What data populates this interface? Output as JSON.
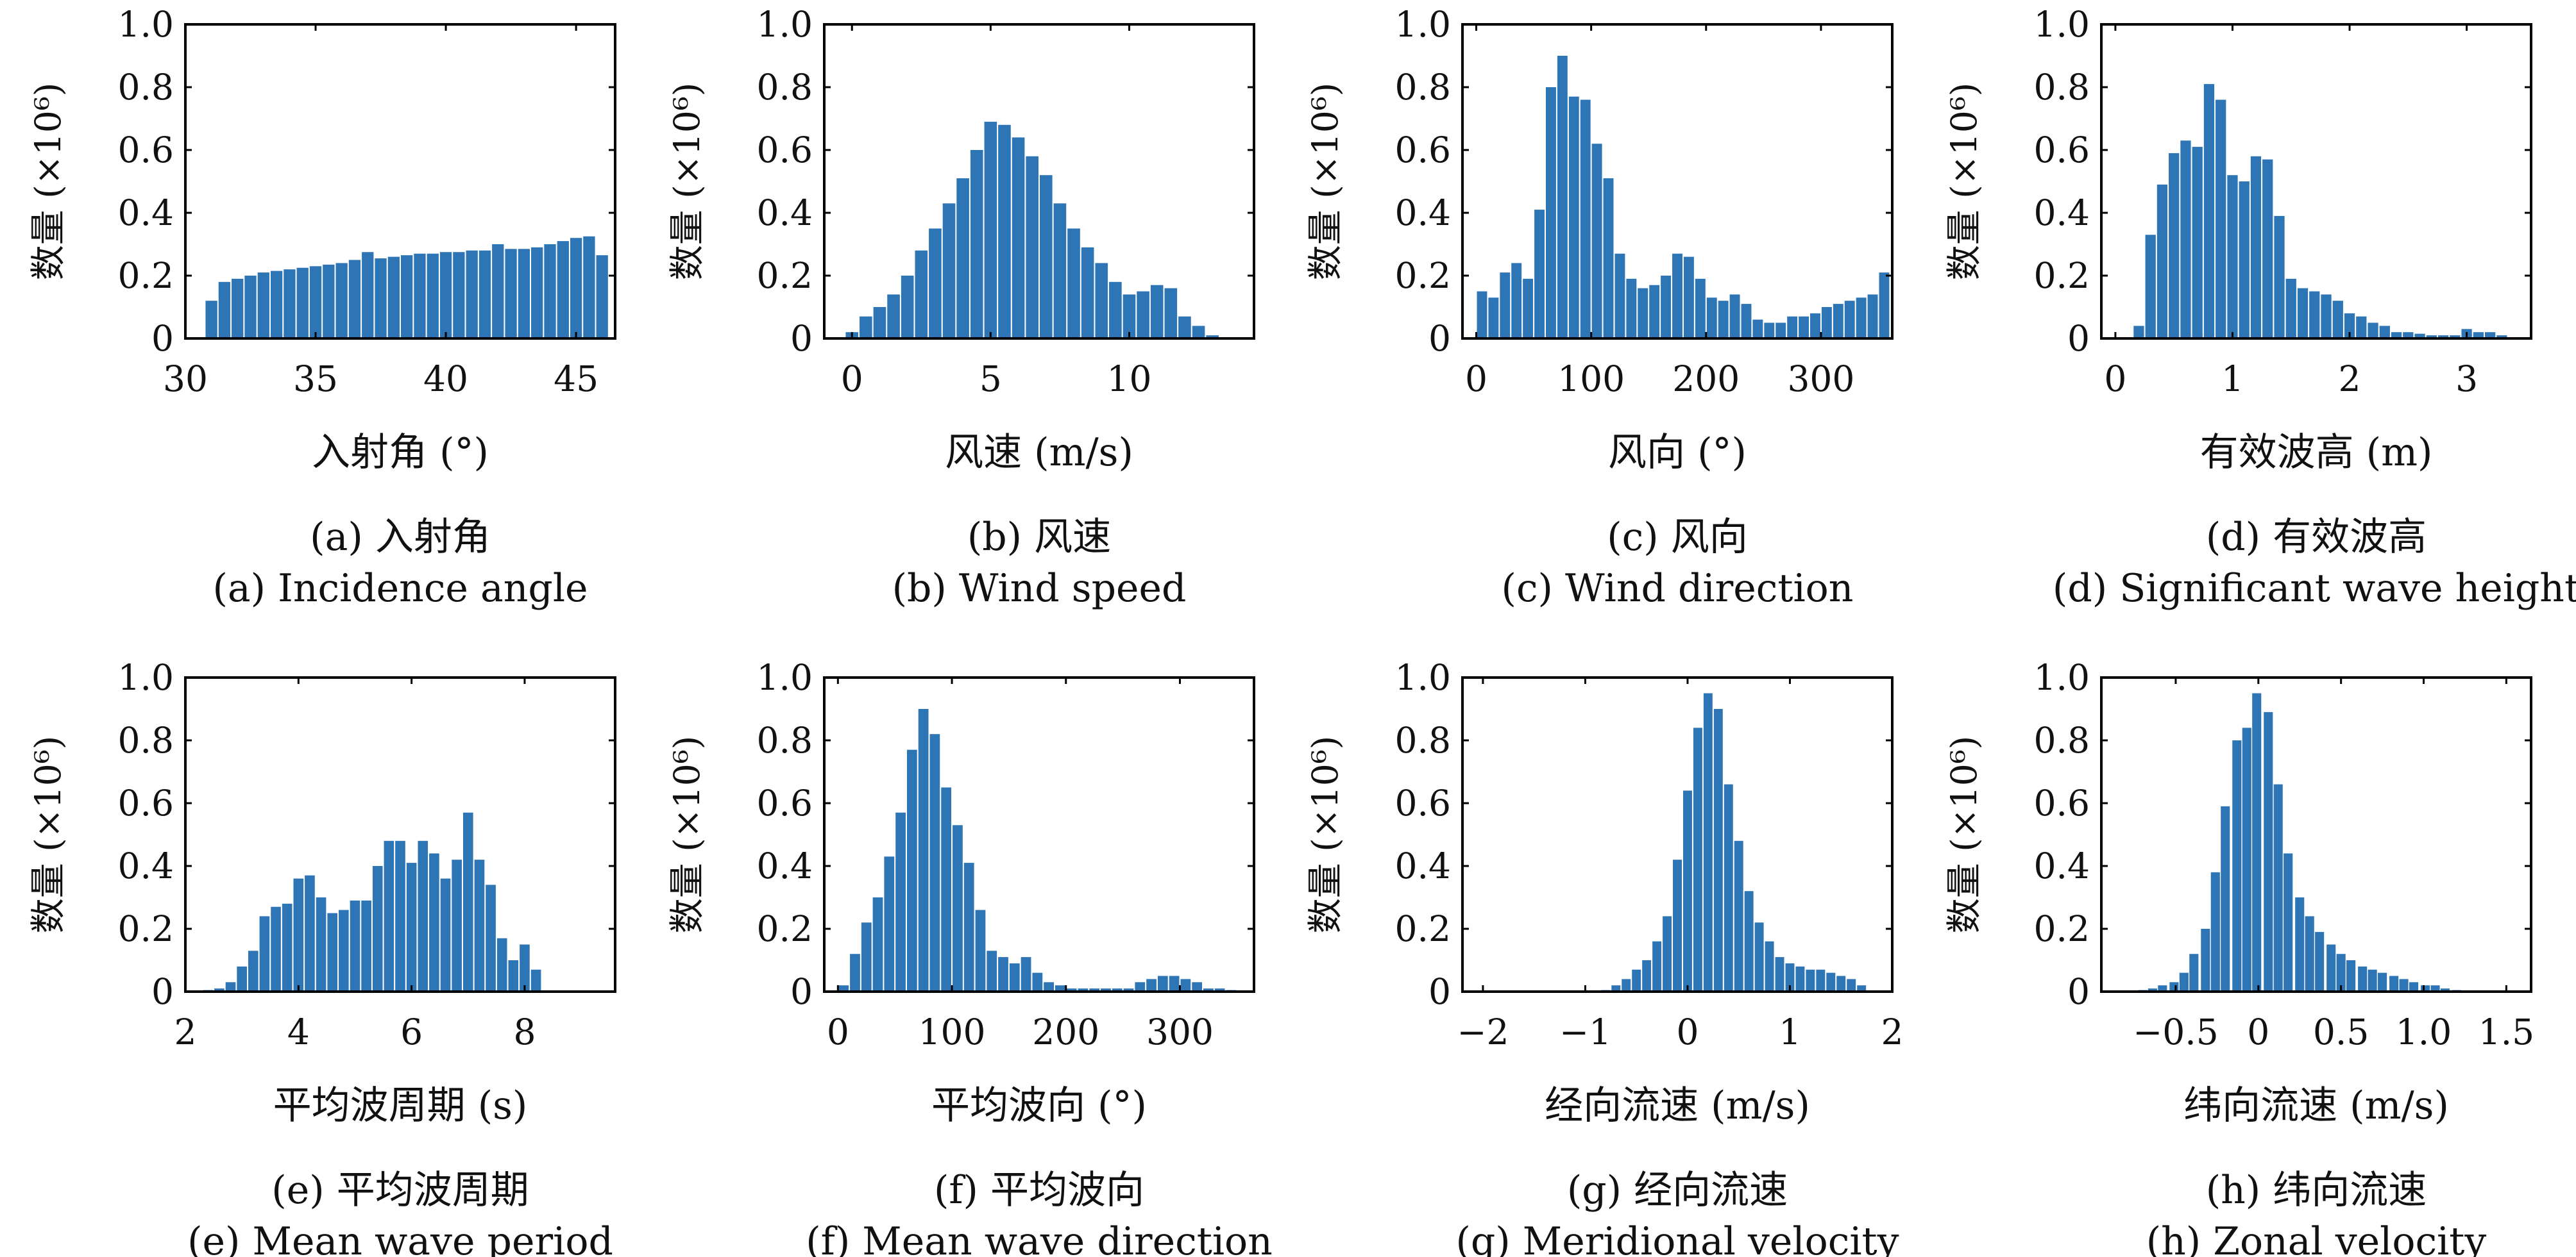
{
  "chart_data": [
    {
      "type": "bar",
      "xlabel": "入射角 (°)",
      "ylabel": "数量 (×10⁶)",
      "caption_cn": "(a) 入射角",
      "caption_en": "(a) Incidence angle",
      "ylim": [
        0,
        1.0
      ],
      "xlim": [
        30,
        46.5
      ],
      "xticks": [
        30,
        35,
        40,
        45
      ],
      "xtick_labels": [
        "30",
        "35",
        "40",
        "45"
      ],
      "yticks": [
        0,
        0.2,
        0.4,
        0.6,
        0.8,
        1.0
      ],
      "ytick_labels": [
        "0",
        "0.2",
        "0.4",
        "0.6",
        "0.8",
        "1.0"
      ],
      "bin_width": 0.5,
      "x": [
        31.0,
        31.5,
        32.0,
        32.5,
        33.0,
        33.5,
        34.0,
        34.5,
        35.0,
        35.5,
        36.0,
        36.5,
        37.0,
        37.5,
        38.0,
        38.5,
        39.0,
        39.5,
        40.0,
        40.5,
        41.0,
        41.5,
        42.0,
        42.5,
        43.0,
        43.5,
        44.0,
        44.5,
        45.0,
        45.5,
        46.0
      ],
      "values": [
        0.12,
        0.18,
        0.19,
        0.2,
        0.21,
        0.215,
        0.22,
        0.225,
        0.23,
        0.235,
        0.24,
        0.25,
        0.275,
        0.255,
        0.26,
        0.265,
        0.27,
        0.27,
        0.275,
        0.275,
        0.28,
        0.28,
        0.3,
        0.285,
        0.285,
        0.29,
        0.3,
        0.31,
        0.32,
        0.325,
        0.265
      ]
    },
    {
      "type": "bar",
      "xlabel": "风速 (m/s)",
      "ylabel": "数量 (×10⁶)",
      "caption_cn": "(b) 风速",
      "caption_en": "(b) Wind speed",
      "ylim": [
        0,
        1.0
      ],
      "xlim": [
        -1,
        14.5
      ],
      "xticks": [
        0,
        5,
        10
      ],
      "xtick_labels": [
        "0",
        "5",
        "10"
      ],
      "yticks": [
        0,
        0.2,
        0.4,
        0.6,
        0.8,
        1.0
      ],
      "ytick_labels": [
        "0",
        "0.2",
        "0.4",
        "0.6",
        "0.8",
        "1.0"
      ],
      "bin_width": 0.5,
      "x": [
        0.0,
        0.5,
        1.0,
        1.5,
        2.0,
        2.5,
        3.0,
        3.5,
        4.0,
        4.5,
        5.0,
        5.5,
        6.0,
        6.5,
        7.0,
        7.5,
        8.0,
        8.5,
        9.0,
        9.5,
        10.0,
        10.5,
        11.0,
        11.5,
        12.0,
        12.5,
        13.0
      ],
      "values": [
        0.02,
        0.07,
        0.1,
        0.14,
        0.2,
        0.28,
        0.35,
        0.43,
        0.51,
        0.6,
        0.69,
        0.68,
        0.64,
        0.58,
        0.52,
        0.43,
        0.35,
        0.29,
        0.24,
        0.18,
        0.14,
        0.15,
        0.17,
        0.16,
        0.07,
        0.04,
        0.01
      ]
    },
    {
      "type": "bar",
      "xlabel": "风向 (°)",
      "ylabel": "数量 (×10⁶)",
      "caption_cn": "(c) 风向",
      "caption_en": "(c) Wind direction",
      "ylim": [
        0,
        1.0
      ],
      "xlim": [
        -12,
        362
      ],
      "xticks": [
        0,
        100,
        200,
        300
      ],
      "xtick_labels": [
        "0",
        "100",
        "200",
        "300"
      ],
      "yticks": [
        0,
        0.2,
        0.4,
        0.6,
        0.8,
        1.0
      ],
      "ytick_labels": [
        "0",
        "0.2",
        "0.4",
        "0.6",
        "0.8",
        "1.0"
      ],
      "bin_width": 10,
      "x": [
        5,
        15,
        25,
        35,
        45,
        55,
        65,
        75,
        85,
        95,
        105,
        115,
        125,
        135,
        145,
        155,
        165,
        175,
        185,
        195,
        205,
        215,
        225,
        235,
        245,
        255,
        265,
        275,
        285,
        295,
        305,
        315,
        325,
        335,
        345,
        355
      ],
      "values": [
        0.15,
        0.13,
        0.21,
        0.24,
        0.19,
        0.41,
        0.8,
        0.9,
        0.77,
        0.76,
        0.62,
        0.51,
        0.27,
        0.19,
        0.16,
        0.17,
        0.2,
        0.27,
        0.26,
        0.19,
        0.13,
        0.12,
        0.14,
        0.11,
        0.06,
        0.05,
        0.05,
        0.07,
        0.07,
        0.08,
        0.1,
        0.11,
        0.12,
        0.13,
        0.14,
        0.21
      ]
    },
    {
      "type": "bar",
      "xlabel": "有效波高 (m)",
      "ylabel": "数量 (×10⁶)",
      "caption_cn": "(d) 有效波高",
      "caption_en": "(d) Significant wave height",
      "ylim": [
        0,
        1.0
      ],
      "xlim": [
        -0.12,
        3.55
      ],
      "xticks": [
        0,
        1,
        2,
        3
      ],
      "xtick_labels": [
        "0",
        "1",
        "2",
        "3"
      ],
      "yticks": [
        0,
        0.2,
        0.4,
        0.6,
        0.8,
        1.0
      ],
      "ytick_labels": [
        "0",
        "0.2",
        "0.4",
        "0.6",
        "0.8",
        "1.0"
      ],
      "bin_width": 0.1,
      "x": [
        0.2,
        0.3,
        0.4,
        0.5,
        0.6,
        0.7,
        0.8,
        0.9,
        1.0,
        1.1,
        1.2,
        1.3,
        1.4,
        1.5,
        1.6,
        1.7,
        1.8,
        1.9,
        2.0,
        2.1,
        2.2,
        2.3,
        2.4,
        2.5,
        2.6,
        2.7,
        2.8,
        2.9,
        3.0,
        3.1,
        3.2,
        3.3
      ],
      "values": [
        0.04,
        0.33,
        0.49,
        0.59,
        0.63,
        0.61,
        0.81,
        0.76,
        0.52,
        0.5,
        0.58,
        0.57,
        0.39,
        0.19,
        0.16,
        0.15,
        0.14,
        0.12,
        0.08,
        0.07,
        0.05,
        0.04,
        0.02,
        0.02,
        0.015,
        0.01,
        0.01,
        0.01,
        0.03,
        0.02,
        0.02,
        0.01
      ]
    },
    {
      "type": "bar",
      "xlabel": "平均波周期 (s)",
      "ylabel": "数量 (×10⁶)",
      "caption_cn": "(e) 平均波周期",
      "caption_en": "(e) Mean wave period",
      "ylim": [
        0,
        1.0
      ],
      "xlim": [
        2.0,
        9.6
      ],
      "xticks": [
        2,
        4,
        6,
        8
      ],
      "xtick_labels": [
        "2",
        "4",
        "6",
        "8"
      ],
      "yticks": [
        0,
        0.2,
        0.4,
        0.6,
        0.8,
        1.0
      ],
      "ytick_labels": [
        "0",
        "0.2",
        "0.4",
        "0.6",
        "0.8",
        "1.0"
      ],
      "bin_width": 0.2,
      "x": [
        2.4,
        2.6,
        2.8,
        3.0,
        3.2,
        3.4,
        3.6,
        3.8,
        4.0,
        4.2,
        4.4,
        4.6,
        4.8,
        5.0,
        5.2,
        5.4,
        5.6,
        5.8,
        6.0,
        6.2,
        6.4,
        6.6,
        6.8,
        7.0,
        7.2,
        7.4,
        7.6,
        7.8,
        8.0,
        8.2,
        8.4,
        8.6,
        8.8,
        9.0
      ],
      "values": [
        0.005,
        0.01,
        0.03,
        0.08,
        0.13,
        0.24,
        0.27,
        0.28,
        0.36,
        0.37,
        0.3,
        0.25,
        0.26,
        0.29,
        0.29,
        0.4,
        0.48,
        0.48,
        0.41,
        0.48,
        0.44,
        0.36,
        0.42,
        0.57,
        0.42,
        0.34,
        0.17,
        0.1,
        0.15,
        0.07,
        0.0,
        0.0,
        0.0,
        0.0
      ]
    },
    {
      "type": "bar",
      "xlabel": "平均波向 (°)",
      "ylabel": "数量 (×10⁶)",
      "caption_cn": "(f) 平均波向",
      "caption_en": "(f) Mean wave direction",
      "ylim": [
        0,
        1.0
      ],
      "xlim": [
        -12,
        365
      ],
      "xticks": [
        0,
        100,
        200,
        300
      ],
      "xtick_labels": [
        "0",
        "100",
        "200",
        "300"
      ],
      "yticks": [
        0,
        0.2,
        0.4,
        0.6,
        0.8,
        1.0
      ],
      "ytick_labels": [
        "0",
        "0.2",
        "0.4",
        "0.6",
        "0.8",
        "1.0"
      ],
      "bin_width": 10,
      "x": [
        5,
        15,
        25,
        35,
        45,
        55,
        65,
        75,
        85,
        95,
        105,
        115,
        125,
        135,
        145,
        155,
        165,
        175,
        185,
        195,
        205,
        215,
        225,
        235,
        245,
        255,
        265,
        275,
        285,
        295,
        305,
        315,
        325,
        335,
        345
      ],
      "values": [
        0.02,
        0.12,
        0.22,
        0.3,
        0.43,
        0.57,
        0.77,
        0.9,
        0.82,
        0.65,
        0.53,
        0.41,
        0.26,
        0.13,
        0.11,
        0.09,
        0.11,
        0.06,
        0.03,
        0.02,
        0.01,
        0.01,
        0.01,
        0.01,
        0.01,
        0.01,
        0.03,
        0.04,
        0.05,
        0.05,
        0.04,
        0.03,
        0.01,
        0.01,
        0.005
      ]
    },
    {
      "type": "bar",
      "xlabel": "经向流速 (m/s)",
      "ylabel": "数量 (×10⁶)",
      "caption_cn": "(g) 经向流速",
      "caption_en": "(g) Meridional velocity",
      "ylim": [
        0,
        1.0
      ],
      "xlim": [
        -2.2,
        2.0
      ],
      "xticks": [
        -2,
        -1,
        0,
        1,
        2
      ],
      "xtick_labels": [
        "−2",
        "−1",
        "0",
        "1",
        "2"
      ],
      "yticks": [
        0,
        0.2,
        0.4,
        0.6,
        0.8,
        1.0
      ],
      "ytick_labels": [
        "0",
        "0.2",
        "0.4",
        "0.6",
        "0.8",
        "1.0"
      ],
      "bin_width": 0.1,
      "x": [
        -0.8,
        -0.7,
        -0.6,
        -0.5,
        -0.4,
        -0.3,
        -0.2,
        -0.1,
        0.0,
        0.1,
        0.2,
        0.3,
        0.4,
        0.5,
        0.6,
        0.7,
        0.8,
        0.9,
        1.0,
        1.1,
        1.2,
        1.3,
        1.4,
        1.5,
        1.6,
        1.7
      ],
      "values": [
        0.005,
        0.02,
        0.04,
        0.07,
        0.1,
        0.16,
        0.24,
        0.42,
        0.64,
        0.84,
        0.95,
        0.9,
        0.66,
        0.48,
        0.32,
        0.22,
        0.16,
        0.11,
        0.09,
        0.08,
        0.07,
        0.07,
        0.06,
        0.05,
        0.04,
        0.02
      ]
    },
    {
      "type": "bar",
      "xlabel": "纬向流速 (m/s)",
      "ylabel": "数量 (×10⁶)",
      "caption_cn": "(h) 纬向流速",
      "caption_en": "(h) Zonal velocity",
      "ylim": [
        0,
        1.0
      ],
      "xlim": [
        -0.95,
        1.65
      ],
      "xticks": [
        -0.5,
        0,
        0.5,
        1.0,
        1.5
      ],
      "xtick_labels": [
        "−0.5",
        "0",
        "0.5",
        "1.0",
        "1.5"
      ],
      "yticks": [
        0,
        0.2,
        0.4,
        0.6,
        0.8,
        1.0
      ],
      "ytick_labels": [
        "0",
        "0.2",
        "0.4",
        "0.6",
        "0.8",
        "1.0"
      ],
      "bin_width": 0.0625,
      "x": [
        -0.7,
        -0.64,
        -0.58,
        -0.51,
        -0.45,
        -0.39,
        -0.32,
        -0.26,
        -0.2,
        -0.13,
        -0.07,
        -0.01,
        0.06,
        0.12,
        0.18,
        0.25,
        0.31,
        0.37,
        0.44,
        0.5,
        0.56,
        0.63,
        0.69,
        0.75,
        0.82,
        0.88,
        0.94,
        1.01,
        1.07,
        1.13,
        1.2
      ],
      "values": [
        0.005,
        0.01,
        0.02,
        0.03,
        0.06,
        0.12,
        0.2,
        0.38,
        0.59,
        0.8,
        0.84,
        0.95,
        0.89,
        0.66,
        0.44,
        0.3,
        0.24,
        0.19,
        0.15,
        0.12,
        0.1,
        0.08,
        0.07,
        0.06,
        0.05,
        0.04,
        0.03,
        0.02,
        0.02,
        0.01,
        0.005
      ]
    }
  ],
  "style": {
    "bar_color": "#2e75b6",
    "axis_color": "#000000"
  }
}
